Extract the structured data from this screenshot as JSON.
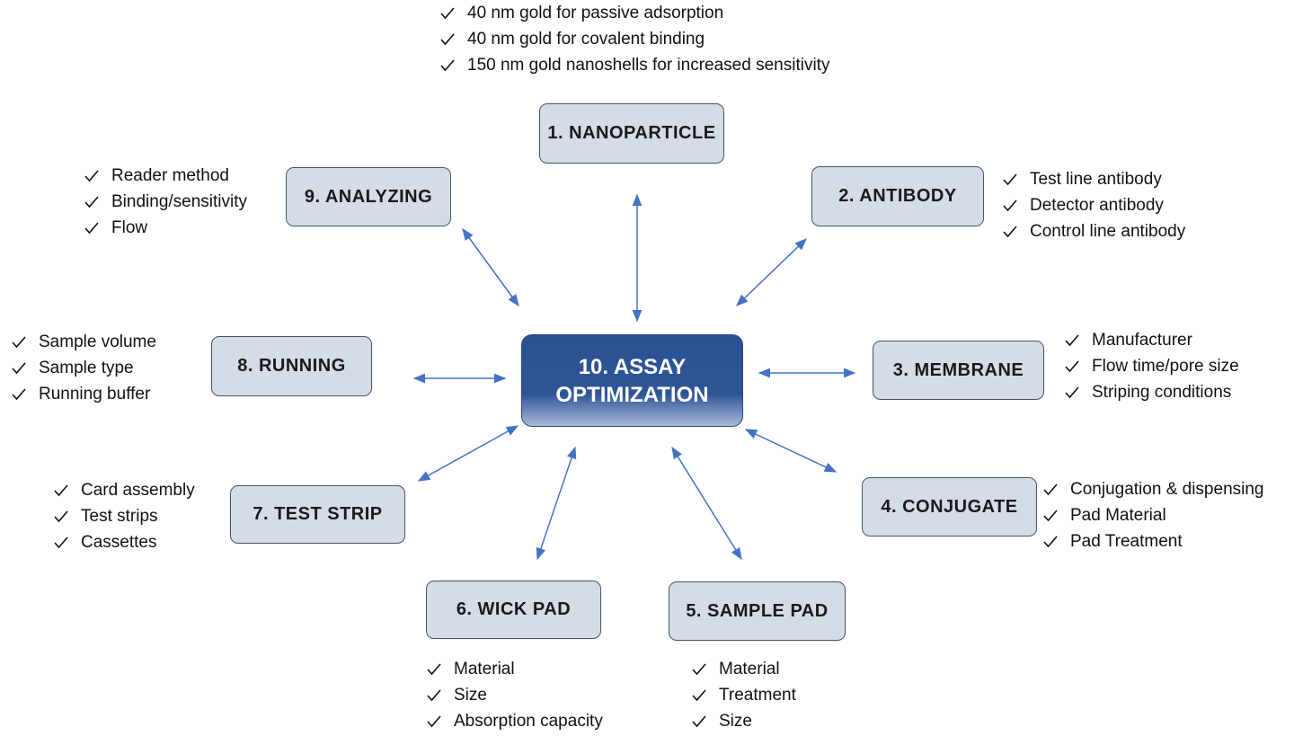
{
  "center": {
    "label": "10. ASSAY OPTIMIZATION"
  },
  "nodes": [
    {
      "label": "1. NANOPARTICLE",
      "items": [
        "40 nm gold for passive adsorption",
        "40 nm gold for covalent binding",
        "150 nm gold nanoshells for increased sensitivity"
      ]
    },
    {
      "label": "2. ANTIBODY",
      "items": [
        "Test line antibody",
        "Detector antibody",
        "Control line antibody"
      ]
    },
    {
      "label": "3. MEMBRANE",
      "items": [
        "Manufacturer",
        "Flow time/pore size",
        "Striping conditions"
      ]
    },
    {
      "label": "4. CONJUGATE",
      "items": [
        "Conjugation & dispensing",
        "Pad Material",
        "Pad Treatment"
      ]
    },
    {
      "label": "5. SAMPLE PAD",
      "items": [
        "Material",
        "Treatment",
        "Size"
      ]
    },
    {
      "label": "6. WICK PAD",
      "items": [
        "Material",
        "Size",
        "Absorption capacity"
      ]
    },
    {
      "label": "7. TEST STRIP",
      "items": [
        "Card assembly",
        "Test strips",
        "Cassettes"
      ]
    },
    {
      "label": "8. RUNNING",
      "items": [
        "Sample volume",
        "Sample type",
        "Running buffer"
      ]
    },
    {
      "label": "9. ANALYZING",
      "items": [
        "Reader method",
        "Binding/sensitivity",
        "Flow"
      ]
    }
  ]
}
